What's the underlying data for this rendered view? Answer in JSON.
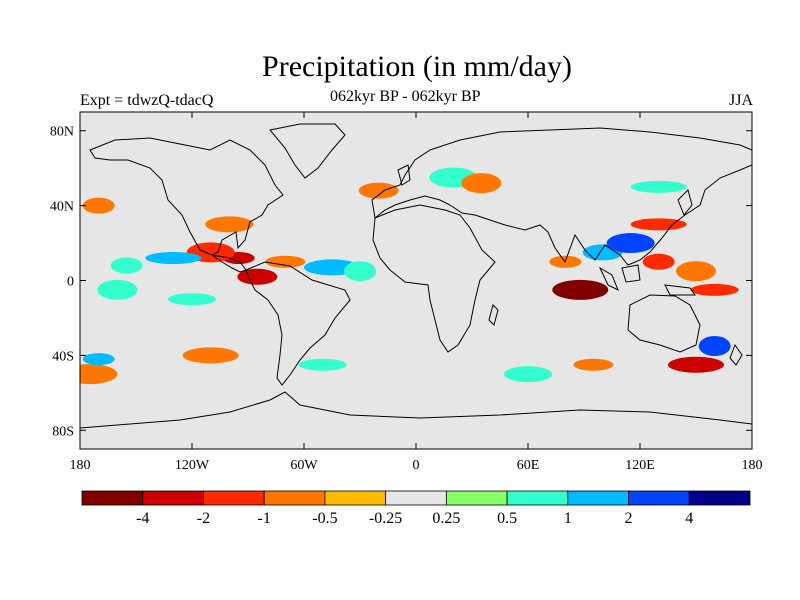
{
  "title": "Precipitation (in mm/day)",
  "subtitle": "062kyr BP - 062kyr BP",
  "experiment": "Expt = tdwzQ-tdacQ",
  "season": "JJA",
  "map": {
    "projection": "cylindrical equidistant",
    "lon_range": [
      -180,
      180
    ],
    "lat_range": [
      -90,
      90
    ],
    "lon_ticks": [
      {
        "value": -180,
        "label": "180"
      },
      {
        "value": -120,
        "label": "120W"
      },
      {
        "value": -60,
        "label": "60W"
      },
      {
        "value": 0,
        "label": "0"
      },
      {
        "value": 60,
        "label": "60E"
      },
      {
        "value": 120,
        "label": "120E"
      },
      {
        "value": 180,
        "label": "180"
      }
    ],
    "lat_ticks": [
      {
        "value": 80,
        "label": "80N"
      },
      {
        "value": 40,
        "label": "40N"
      },
      {
        "value": 0,
        "label": "0"
      },
      {
        "value": -40,
        "label": "40S"
      },
      {
        "value": -80,
        "label": "80S"
      }
    ],
    "background_color": "#e6e6e6",
    "anomaly_regions": [
      {
        "lon": -95,
        "lat": 12,
        "level": "-2"
      },
      {
        "lon": -85,
        "lat": 2,
        "level": "-2"
      },
      {
        "lon": -110,
        "lat": 15,
        "level": "-1"
      },
      {
        "lon": -130,
        "lat": 12,
        "level": "1"
      },
      {
        "lon": -155,
        "lat": 8,
        "level": "0.5"
      },
      {
        "lon": -160,
        "lat": -5,
        "level": "0.5"
      },
      {
        "lon": -120,
        "lat": -10,
        "level": "0.5"
      },
      {
        "lon": -45,
        "lat": 7,
        "level": "1"
      },
      {
        "lon": -30,
        "lat": 5,
        "level": "0.5"
      },
      {
        "lon": -70,
        "lat": 10,
        "level": "-0.5"
      },
      {
        "lon": -100,
        "lat": 30,
        "level": "-0.5"
      },
      {
        "lon": 88,
        "lat": -5,
        "level": "-4"
      },
      {
        "lon": 80,
        "lat": 10,
        "level": "-0.5"
      },
      {
        "lon": 100,
        "lat": 15,
        "level": "1"
      },
      {
        "lon": 115,
        "lat": 20,
        "level": "2"
      },
      {
        "lon": 130,
        "lat": 30,
        "level": "-1"
      },
      {
        "lon": 130,
        "lat": 10,
        "level": "-1"
      },
      {
        "lon": 150,
        "lat": 5,
        "level": "-0.5"
      },
      {
        "lon": 160,
        "lat": -5,
        "level": "-1"
      },
      {
        "lon": 150,
        "lat": -45,
        "level": "-2"
      },
      {
        "lon": 160,
        "lat": -35,
        "level": "2"
      },
      {
        "lon": 95,
        "lat": -45,
        "level": "-0.5"
      },
      {
        "lon": 60,
        "lat": -50,
        "level": "0.5"
      },
      {
        "lon": -175,
        "lat": -50,
        "level": "-0.5"
      },
      {
        "lon": -170,
        "lat": -42,
        "level": "1"
      },
      {
        "lon": -20,
        "lat": 48,
        "level": "-0.5"
      },
      {
        "lon": 20,
        "lat": 55,
        "level": "0.5"
      },
      {
        "lon": 130,
        "lat": 50,
        "level": "0.5"
      },
      {
        "lon": -170,
        "lat": 40,
        "level": "-0.5"
      },
      {
        "lon": 35,
        "lat": 52,
        "level": "-0.5"
      },
      {
        "lon": -50,
        "lat": -45,
        "level": "0.5"
      },
      {
        "lon": -110,
        "lat": -40,
        "level": "-0.5"
      }
    ]
  },
  "colorbar": {
    "colors": [
      "#800000",
      "#cc0000",
      "#ff2a00",
      "#ff7700",
      "#ffbb00",
      "#e6e6e6",
      "#88ff66",
      "#33ffcc",
      "#00bbff",
      "#0044ff",
      "#000088"
    ],
    "labels": [
      "-4",
      "-2",
      "-1",
      "-0.5",
      "-0.25",
      "0.25",
      "0.5",
      "1",
      "2",
      "4"
    ]
  }
}
